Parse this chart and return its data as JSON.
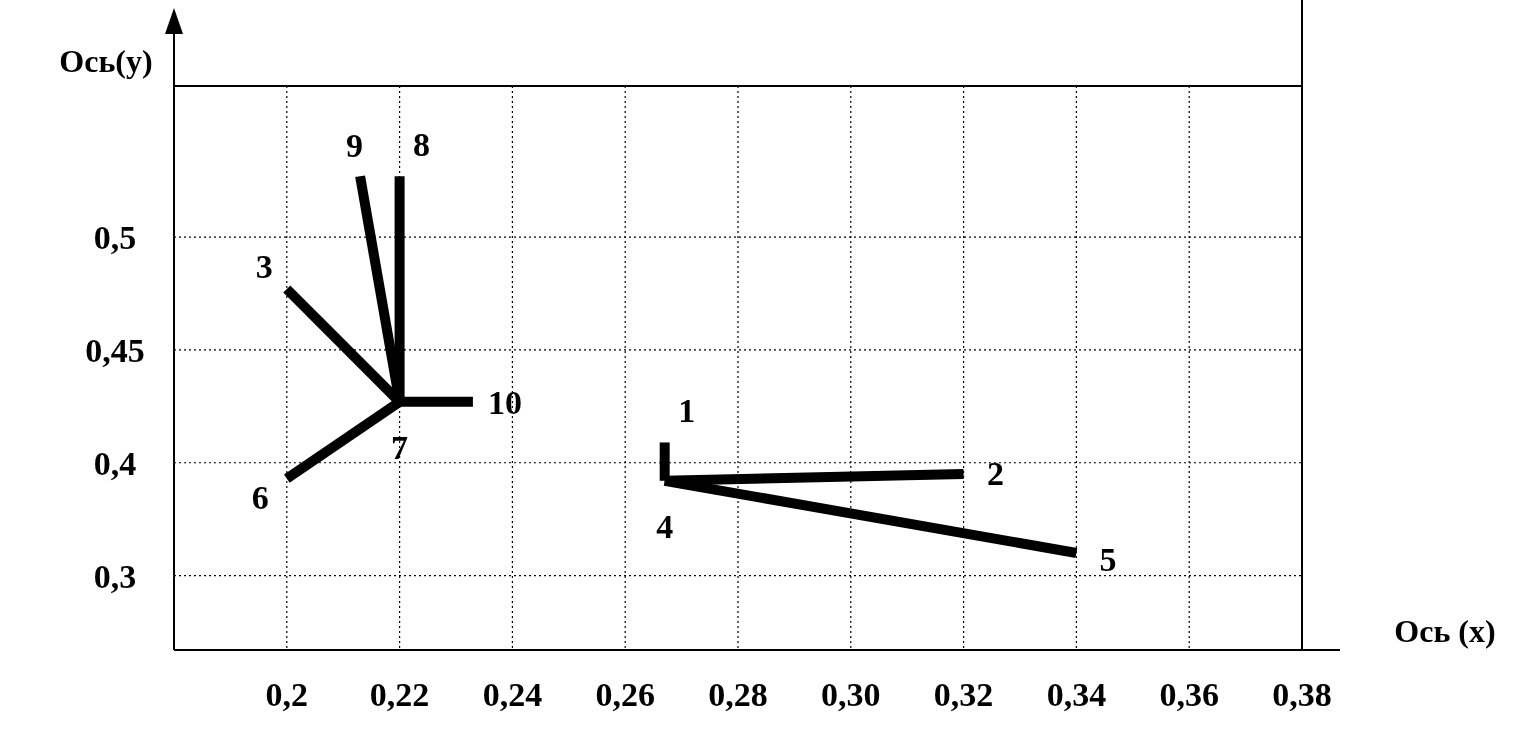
{
  "chart_data": {
    "type": "line",
    "xlabel": "Ось (x)",
    "ylabel": "Ось(y)",
    "xlim": [
      0.18,
      0.38
    ],
    "ylim": [
      0.317,
      0.567
    ],
    "xticks": [
      {
        "value": 0.2,
        "label": "0,2"
      },
      {
        "value": 0.22,
        "label": "0,22"
      },
      {
        "value": 0.24,
        "label": "0,24"
      },
      {
        "value": 0.26,
        "label": "0,26"
      },
      {
        "value": 0.28,
        "label": "0,28"
      },
      {
        "value": 0.3,
        "label": "0,30"
      },
      {
        "value": 0.32,
        "label": "0,32"
      },
      {
        "value": 0.34,
        "label": "0,34"
      },
      {
        "value": 0.36,
        "label": "0,36"
      },
      {
        "value": 0.38,
        "label": "0,38"
      }
    ],
    "yticks": [
      {
        "value": 0.35,
        "label": "0,3"
      },
      {
        "value": 0.4,
        "label": "0,4"
      },
      {
        "value": 0.45,
        "label": "0,45"
      },
      {
        "value": 0.5,
        "label": "0,5"
      }
    ],
    "grid": true,
    "marker": "none",
    "line_style": "solid",
    "series": [
      {
        "color": "#000000",
        "x": [
          0.22,
          0.2
        ],
        "values": [
          0.427,
          0.477
        ]
      },
      {
        "color": "#000000",
        "x": [
          0.22,
          0.213
        ],
        "values": [
          0.427,
          0.527
        ]
      },
      {
        "color": "#000000",
        "x": [
          0.22,
          0.22
        ],
        "values": [
          0.427,
          0.527
        ]
      },
      {
        "color": "#000000",
        "x": [
          0.22,
          0.233
        ],
        "values": [
          0.427,
          0.427
        ]
      },
      {
        "color": "#000000",
        "x": [
          0.22,
          0.2
        ],
        "values": [
          0.427,
          0.393
        ]
      },
      {
        "color": "#000000",
        "x": [
          0.267,
          0.267
        ],
        "values": [
          0.392,
          0.409
        ]
      },
      {
        "color": "#000000",
        "x": [
          0.267,
          0.32
        ],
        "values": [
          0.392,
          0.395
        ]
      },
      {
        "color": "#000000",
        "x": [
          0.267,
          0.34
        ],
        "values": [
          0.392,
          0.36
        ]
      }
    ],
    "annotations": [
      {
        "text": "1",
        "x": 0.267,
        "y": 0.409
      },
      {
        "text": "2",
        "x": 0.32,
        "y": 0.395
      },
      {
        "text": "3",
        "x": 0.2,
        "y": 0.477
      },
      {
        "text": "4",
        "x": 0.267,
        "y": 0.392
      },
      {
        "text": "5",
        "x": 0.34,
        "y": 0.36
      },
      {
        "text": "6",
        "x": 0.2,
        "y": 0.393
      },
      {
        "text": "7",
        "x": 0.22,
        "y": 0.427
      },
      {
        "text": "8",
        "x": 0.22,
        "y": 0.527
      },
      {
        "text": "9",
        "x": 0.213,
        "y": 0.527
      },
      {
        "text": "10",
        "x": 0.233,
        "y": 0.427
      }
    ]
  }
}
